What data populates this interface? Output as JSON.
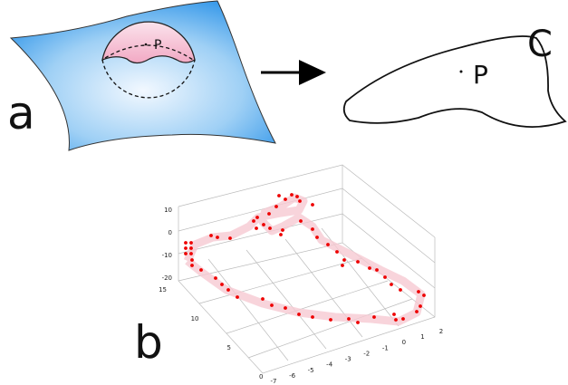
{
  "panel_a": {
    "label": "a",
    "point": "P"
  },
  "panel_c": {
    "label": "C",
    "point": "P"
  },
  "panel_b": {
    "label": "b",
    "plot": {
      "zticks": [
        10,
        0,
        -10,
        -20
      ],
      "yticks": [
        15,
        10,
        5,
        0
      ],
      "xticks": [
        -7,
        -6,
        -5,
        -4,
        -3,
        -2,
        -1,
        0,
        1,
        2
      ]
    }
  }
}
